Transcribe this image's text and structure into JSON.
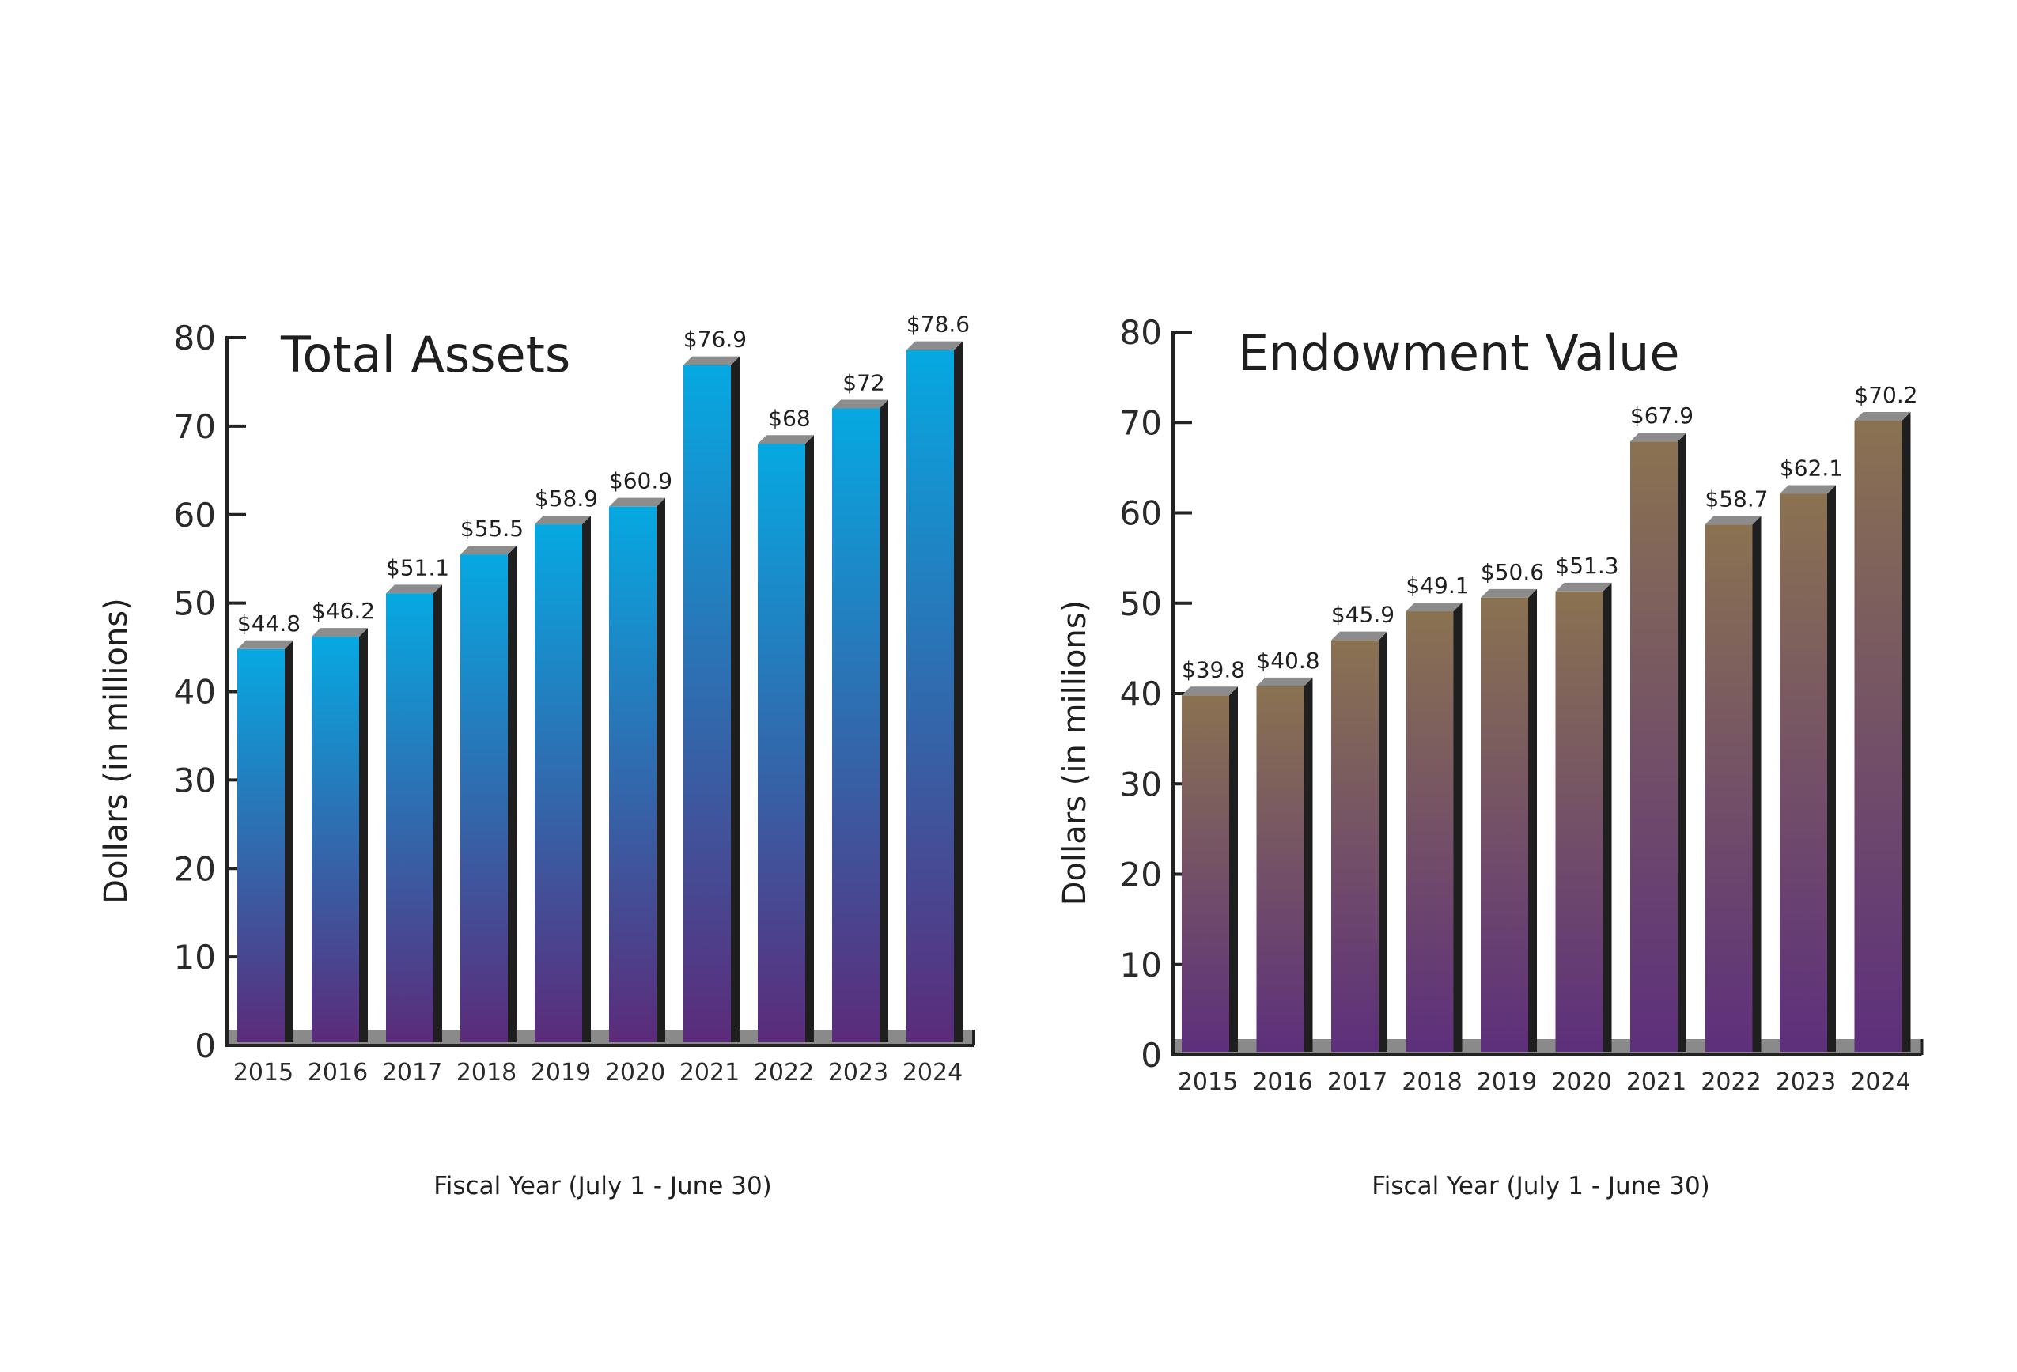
{
  "colors": {
    "assets_top": "#06a9e2",
    "assets_bottom": "#5b2b7a",
    "endowment_top": "#8a7251",
    "endowment_bottom": "#5d2f7c",
    "bar_side": "#1f1f1f",
    "bar_cap": "#8c8c8c",
    "floor": "#8a8a8a",
    "axis": "#222222",
    "text": "#1f1f1f"
  },
  "chart_data": [
    {
      "id": "total-assets",
      "type": "bar",
      "title": "Total Assets",
      "ylabel": "Dollars (in millions)",
      "xlabel": "Fiscal Year (July 1 - June 30)",
      "ylim": [
        0,
        80
      ],
      "yticks": [
        0,
        10,
        20,
        30,
        40,
        50,
        60,
        70,
        80
      ],
      "categories": [
        "2015",
        "2016",
        "2017",
        "2018",
        "2019",
        "2020",
        "2021",
        "2022",
        "2023",
        "2024"
      ],
      "values": [
        44.8,
        46.2,
        51.1,
        55.5,
        58.9,
        60.9,
        76.9,
        68,
        72,
        78.6
      ],
      "data_labels": [
        "$44.8",
        "$46.2",
        "$51.1",
        "$55.5",
        "$58.9",
        "$60.9",
        "$76.9",
        "$68",
        "$72",
        "$78.6"
      ]
    },
    {
      "id": "endowment-value",
      "type": "bar",
      "title": "Endowment Value",
      "ylabel": "Dollars (in millions)",
      "xlabel": "Fiscal Year (July 1 - June 30)",
      "ylim": [
        0,
        80
      ],
      "yticks": [
        0,
        10,
        20,
        30,
        40,
        50,
        60,
        70,
        80
      ],
      "categories": [
        "2015",
        "2016",
        "2017",
        "2018",
        "2019",
        "2020",
        "2021",
        "2022",
        "2023",
        "2024"
      ],
      "values": [
        39.8,
        40.8,
        45.9,
        49.1,
        50.6,
        51.3,
        67.9,
        58.7,
        62.1,
        70.2
      ],
      "data_labels": [
        "$39.8",
        "$40.8",
        "$45.9",
        "$49.1",
        "$50.6",
        "$51.3",
        "$67.9",
        "$58.7",
        "$62.1",
        "$70.2"
      ]
    }
  ]
}
